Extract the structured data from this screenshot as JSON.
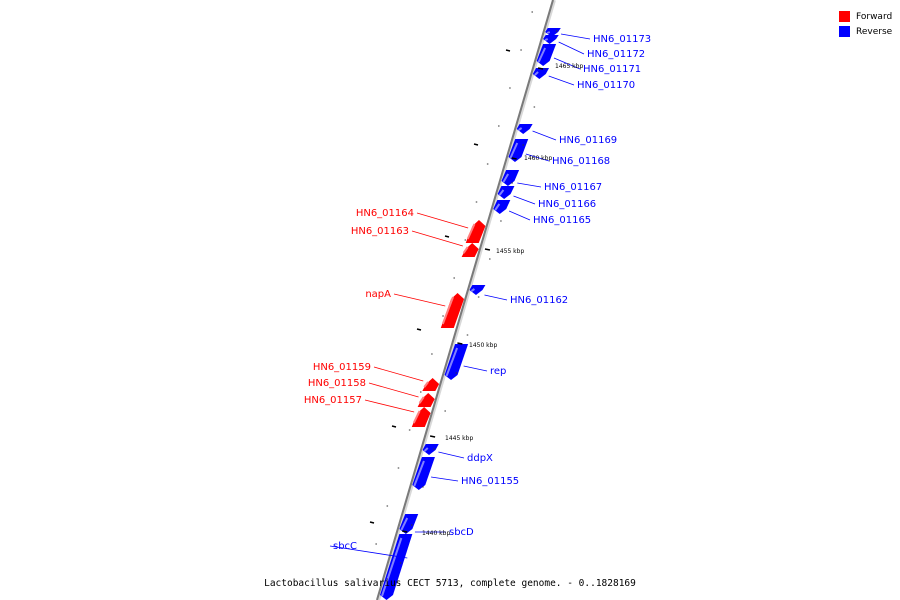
{
  "legend": {
    "forward": {
      "label": "Forward",
      "color": "#ff0000"
    },
    "reverse": {
      "label": "Reverse",
      "color": "#0000ff"
    }
  },
  "caption": "Lactobacillus salivarius CECT 5713, complete genome. - 0..1828169",
  "ticks": [
    {
      "label": "1465 kbp"
    },
    {
      "label": "1460 kbp"
    },
    {
      "label": "1455 kbp"
    },
    {
      "label": "1450 kbp"
    },
    {
      "label": "1445 kbp"
    },
    {
      "label": "1440 kbp"
    }
  ],
  "genes": [
    {
      "name": "HN6_01173",
      "strand": "reverse"
    },
    {
      "name": "HN6_01172",
      "strand": "reverse"
    },
    {
      "name": "HN6_01171",
      "strand": "reverse"
    },
    {
      "name": "HN6_01170",
      "strand": "reverse"
    },
    {
      "name": "HN6_01169",
      "strand": "reverse"
    },
    {
      "name": "HN6_01168",
      "strand": "reverse"
    },
    {
      "name": "HN6_01167",
      "strand": "reverse"
    },
    {
      "name": "HN6_01166",
      "strand": "reverse"
    },
    {
      "name": "HN6_01165",
      "strand": "reverse"
    },
    {
      "name": "HN6_01164",
      "strand": "forward"
    },
    {
      "name": "HN6_01163",
      "strand": "forward"
    },
    {
      "name": "HN6_01162",
      "strand": "reverse"
    },
    {
      "name": "napA",
      "strand": "forward"
    },
    {
      "name": "rep",
      "strand": "reverse"
    },
    {
      "name": "HN6_01159",
      "strand": "forward"
    },
    {
      "name": "HN6_01158",
      "strand": "forward"
    },
    {
      "name": "HN6_01157",
      "strand": "forward"
    },
    {
      "name": "ddpX",
      "strand": "reverse"
    },
    {
      "name": "HN6_01155",
      "strand": "reverse"
    },
    {
      "name": "sbcD",
      "strand": "reverse"
    },
    {
      "name": "sbcC",
      "strand": "reverse"
    }
  ]
}
